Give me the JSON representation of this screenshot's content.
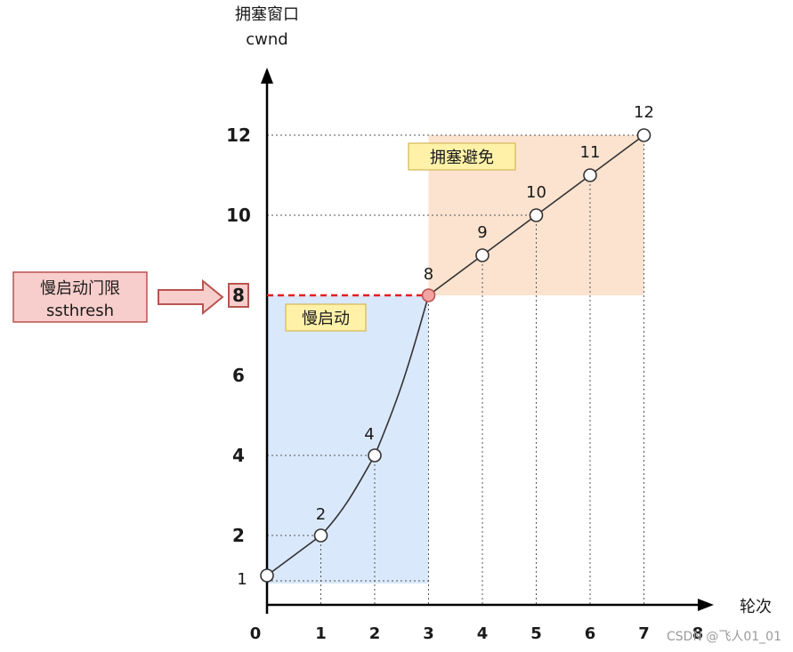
{
  "y_axis": {
    "title_cn": "拥塞窗口",
    "title_en": "cwnd"
  },
  "x_axis": {
    "title": "轮次"
  },
  "chart_data": {
    "type": "line",
    "x": [
      0,
      1,
      2,
      3,
      4,
      5,
      6,
      7
    ],
    "y": [
      1,
      2,
      4,
      8,
      9,
      10,
      11,
      12
    ],
    "point_labels": [
      "1",
      "2",
      "4",
      "8",
      "9",
      "10",
      "11",
      "12"
    ],
    "x_ticks": [
      "0",
      "1",
      "2",
      "3",
      "4",
      "5",
      "6",
      "7",
      "8"
    ],
    "y_ticks": [
      "2",
      "4",
      "6",
      "8",
      "10",
      "12"
    ],
    "threshold_value": 8,
    "regions": [
      {
        "name": "慢启动",
        "x_range": [
          0,
          3
        ],
        "y_range": [
          0.8,
          8
        ],
        "color": "#dae8fc"
      },
      {
        "name": "拥塞避免",
        "x_range": [
          3,
          7
        ],
        "y_range": [
          8,
          12
        ],
        "color": "#fbe3cf"
      }
    ]
  },
  "ssthresh_box": {
    "line1": "慢启动门限",
    "line2": "ssthresh"
  },
  "threshold_tick": "8",
  "watermark": "CSDN @飞人01_01",
  "colors": {
    "slow_start_fill": "#dae8fc",
    "congestion_avoid_fill": "#fbe3cf",
    "label_bg": "#fff2a8",
    "ssthresh_box_fill": "#f8cecc",
    "ssthresh_border": "#b85450",
    "dashed_threshold": "#e02020",
    "highlight_point": "#f4a3a3"
  }
}
